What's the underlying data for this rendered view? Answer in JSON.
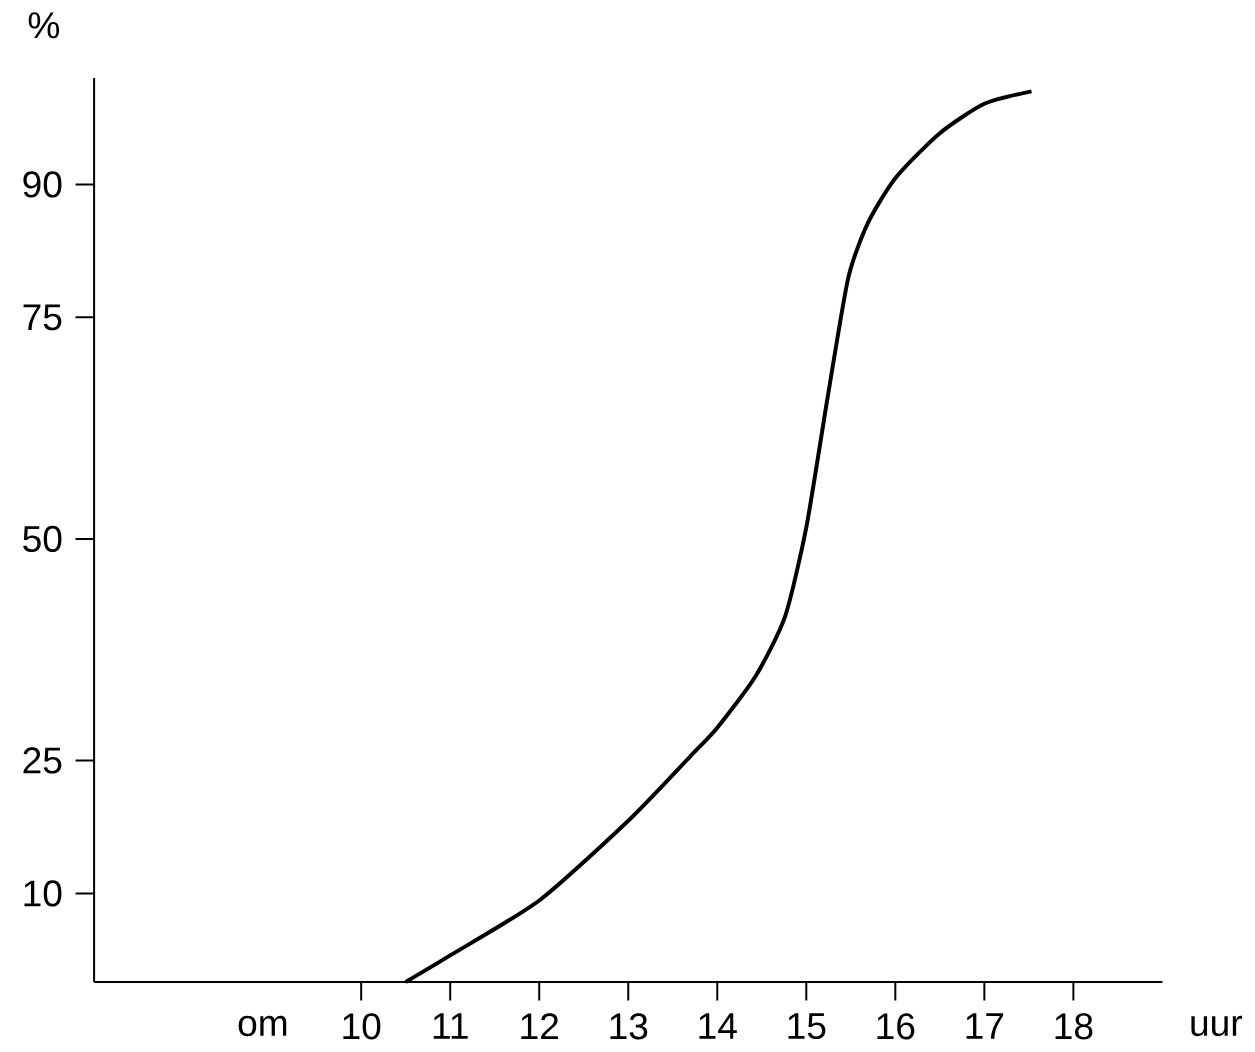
{
  "chart_data": {
    "type": "line",
    "ylabel": "%",
    "xlabel": "uur",
    "annotations": [
      "om"
    ],
    "xlim": [
      7,
      19
    ],
    "ylim": [
      0,
      102
    ],
    "xticks": [
      10,
      11,
      12,
      13,
      14,
      15,
      16,
      17,
      18
    ],
    "yticks": [
      10,
      25,
      50,
      75,
      90
    ],
    "line_style": "solid",
    "series": [
      {
        "color": "#000000",
        "x": [
          10.5,
          11,
          12,
          13,
          13.7,
          14,
          14.43,
          14.76,
          15,
          15.24,
          15.47,
          15.69,
          16,
          16.49,
          17,
          17.53
        ],
        "values": [
          0,
          3,
          9.2,
          18.2,
          25.5,
          28.7,
          34.5,
          41.2,
          51.3,
          66,
          79.4,
          85.6,
          90.7,
          95.7,
          99.1,
          100.5
        ]
      }
    ]
  }
}
